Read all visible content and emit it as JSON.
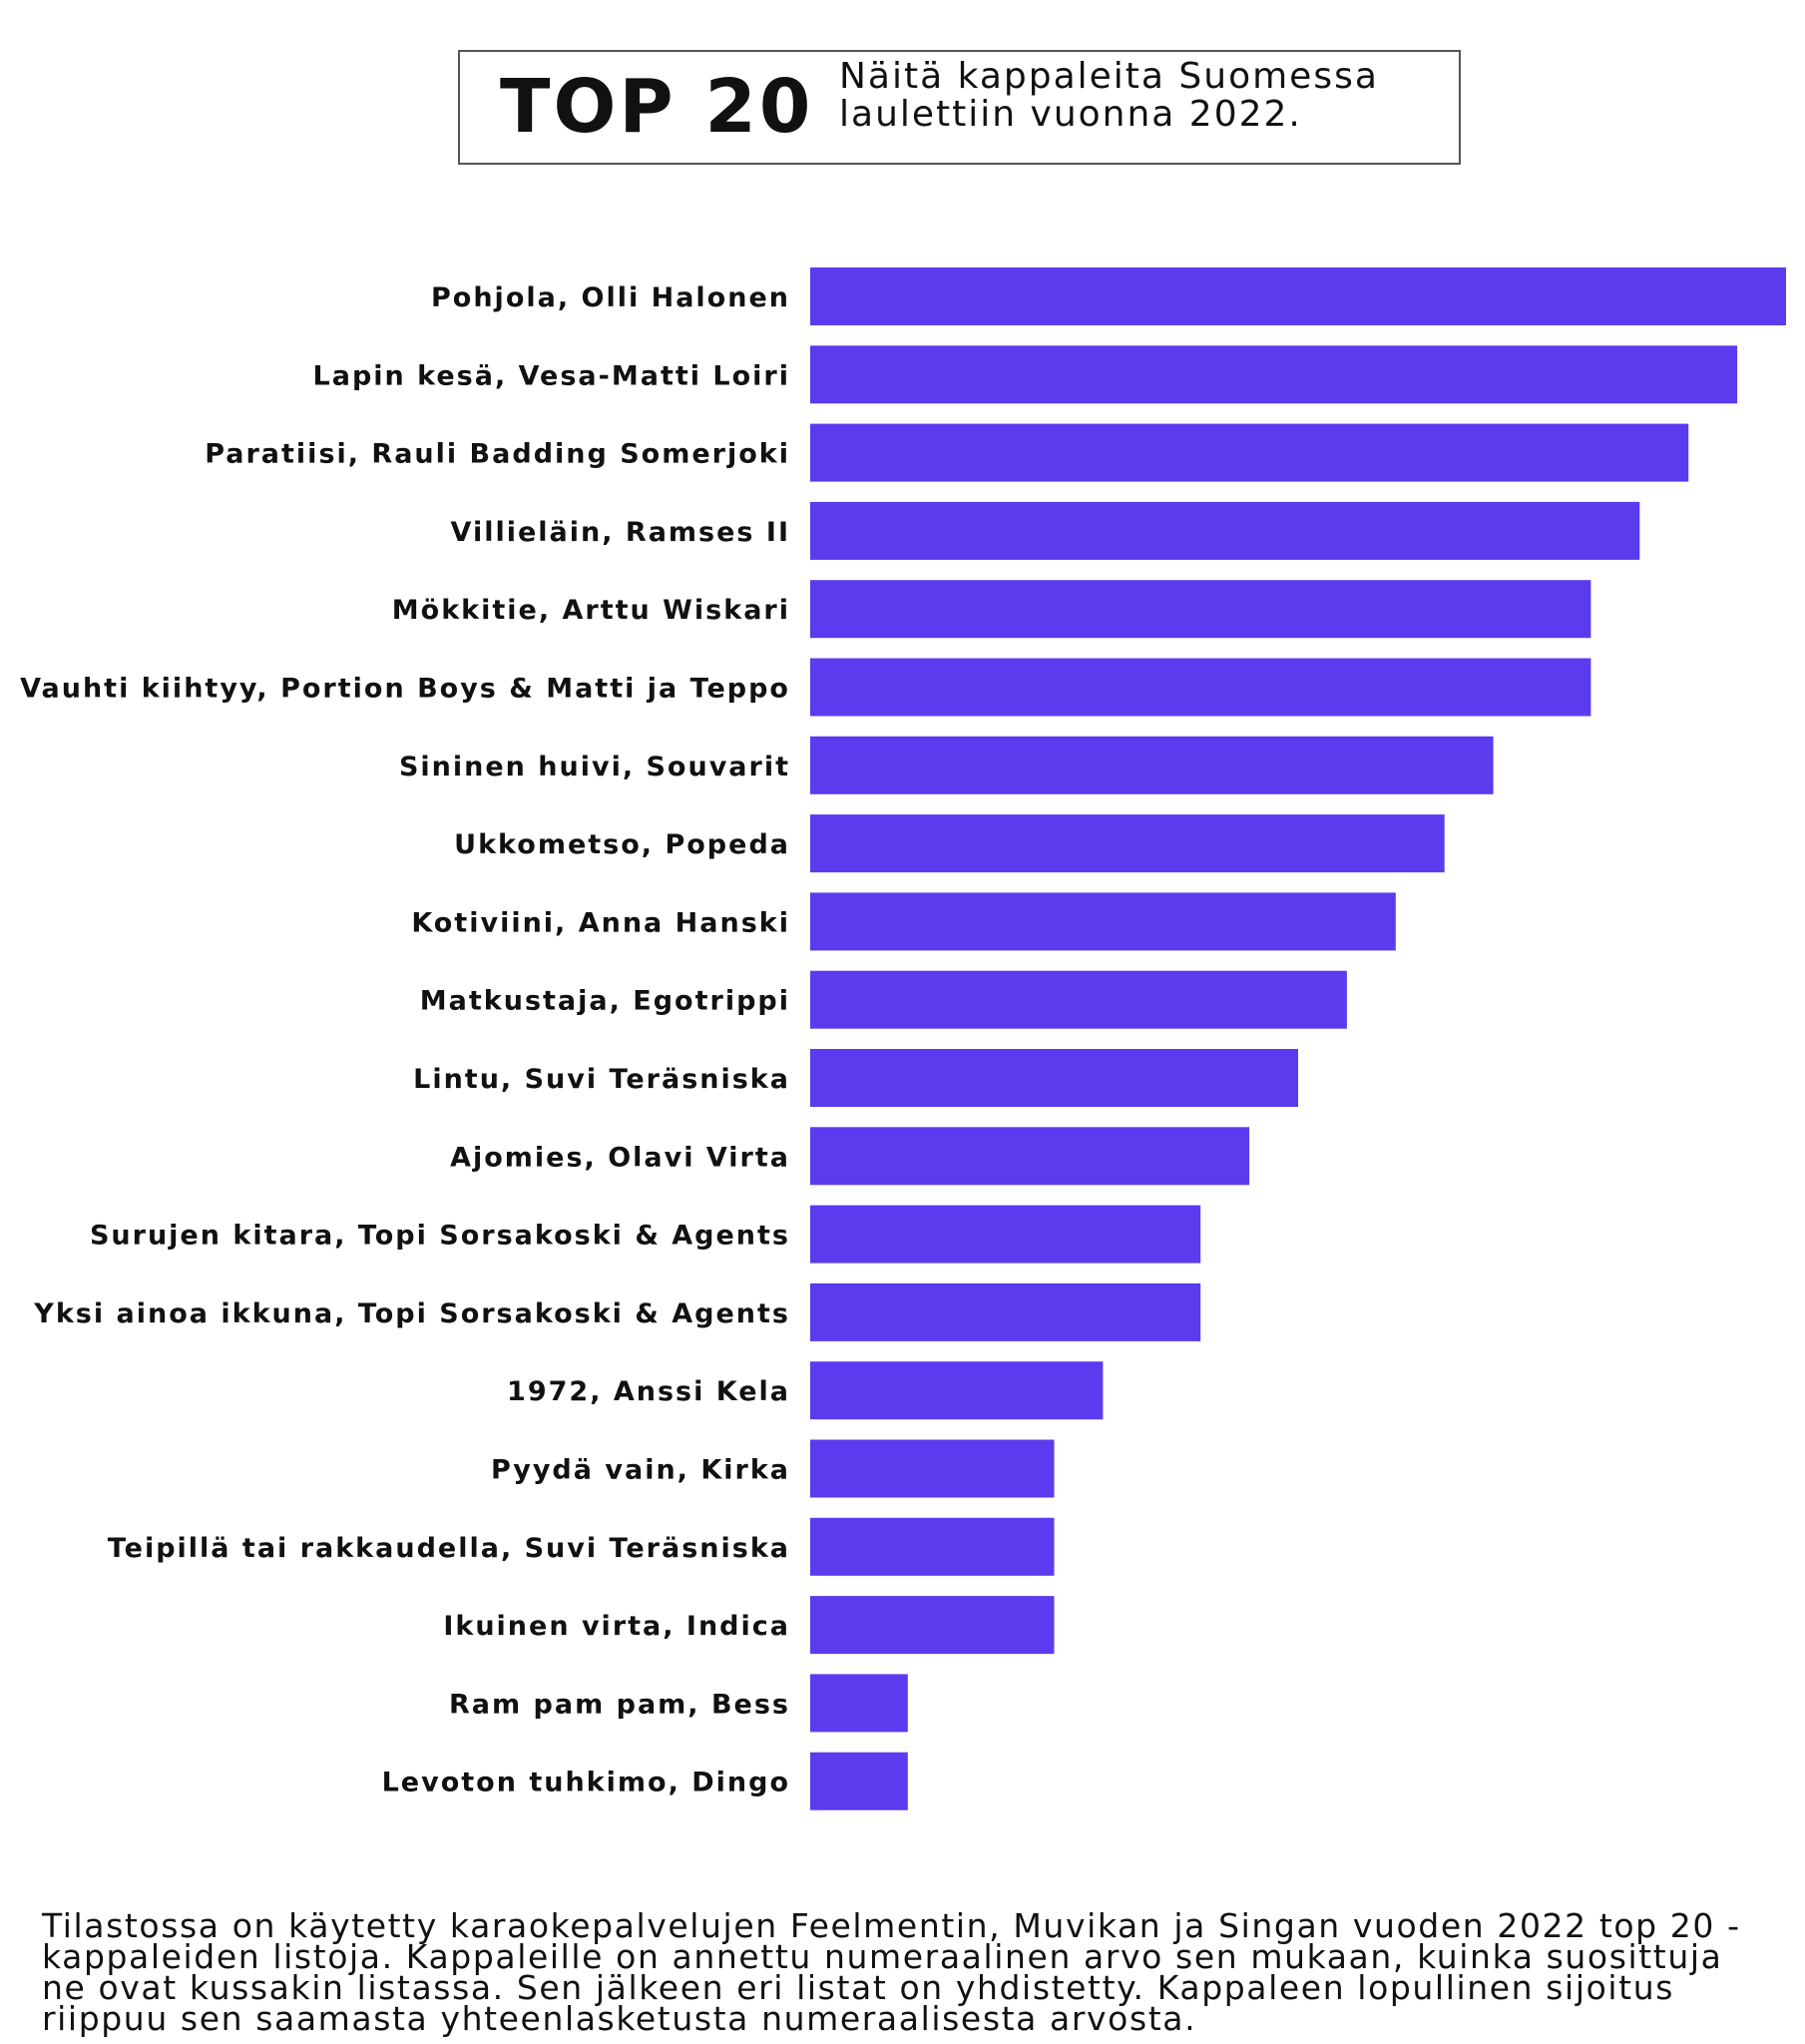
{
  "header": {
    "title": "TOP 20",
    "subtitle_line1": "Näitä kappaleita Suomessa",
    "subtitle_line2": "laulettiin vuonna 2022."
  },
  "colors": {
    "bar": "#5c3aee",
    "text": "#111111"
  },
  "chart_data": {
    "type": "bar",
    "orientation": "horizontal",
    "categories": [
      "Pohjola, Olli Halonen",
      "Lapin kesä, Vesa-Matti Loiri",
      "Paratiisi, Rauli Badding Somerjoki",
      "Villieläin, Ramses II",
      "Mökkitie, Arttu Wiskari",
      "Vauhti kiihtyy, Portion Boys & Matti ja Teppo",
      "Sininen huivi, Souvarit",
      "Ukkometso, Popeda",
      "Kotiviini, Anna Hanski",
      "Matkustaja, Egotrippi",
      "Lintu, Suvi Teräsniska",
      "Ajomies, Olavi Virta",
      "Surujen kitara, Topi Sorsakoski & Agents",
      "Yksi ainoa ikkuna, Topi Sorsakoski & Agents",
      "1972, Anssi Kela",
      "Pyydä vain, Kirka",
      "Teipillä tai rakkaudella, Suvi Teräsniska",
      "Ikuinen virta, Indica",
      "Ram pam pam, Bess",
      "Levoton tuhkimo, Dingo"
    ],
    "values": [
      20,
      19,
      18,
      17,
      16,
      16,
      14,
      13,
      12,
      11,
      10,
      9,
      8,
      8,
      6,
      5,
      5,
      5,
      2,
      2
    ],
    "xlim": [
      0,
      20
    ],
    "grid": false,
    "legend": "none"
  },
  "footnote": "Tilastossa on käytetty karaokepalvelujen Feelmentin, Muvikan ja Singan vuoden 2022 top 20 -kappaleiden listoja. Kappaleille on annettu numeraalinen arvo sen mukaan, kuinka suosittuja ne ovat kussakin listassa. Sen jälkeen eri listat on yhdistetty. Kappaleen lopullinen sijoitus riippuu sen saamasta yhteenlasketusta numeraalisesta arvosta."
}
